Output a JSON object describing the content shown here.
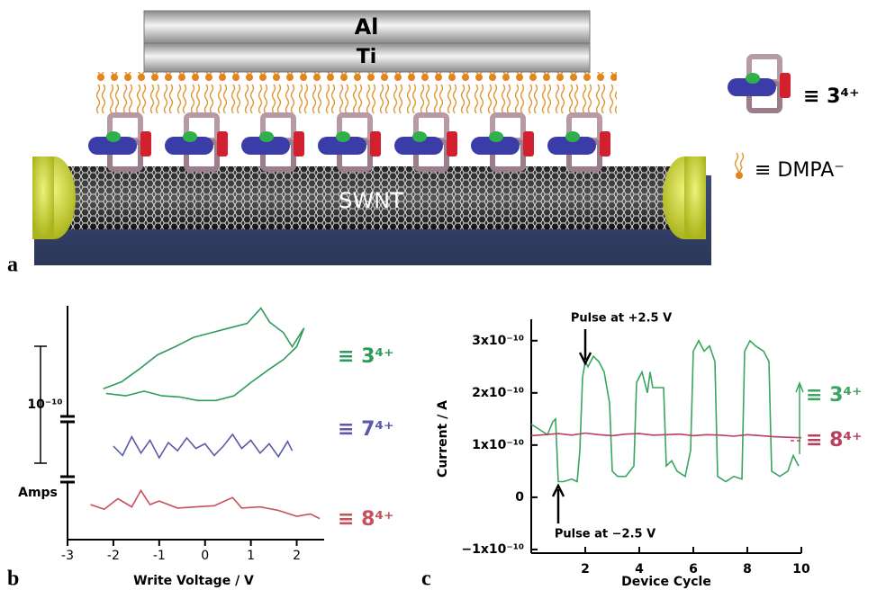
{
  "illustration": {
    "electrode_top": "Al",
    "electrode_bottom": "Ti",
    "nanotube": "SWNT",
    "panel_label": "a",
    "legend": [
      "≡ 3⁴⁺",
      "≡ DMPA⁻"
    ]
  },
  "chart_data": [
    {
      "type": "line",
      "panel_label": "b",
      "xlabel": "Write Voltage / V",
      "ylabel": "Amps",
      "xlim": [
        -3,
        2.5
      ],
      "xticks": [
        -3,
        -2,
        -1,
        0,
        1,
        2
      ],
      "ylim": [
        0,
        2e-10
      ],
      "scale_bar": {
        "value": 1e-10,
        "label": "10⁻¹⁰"
      },
      "series": [
        {
          "name": "≡ 3⁴⁺",
          "color": "#2e9b5c",
          "x": [
            -2.22,
            -1.82,
            -1.43,
            -1.04,
            -0.65,
            -0.25,
            0.14,
            0.53,
            0.92,
            1.22,
            1.41,
            1.71,
            1.9,
            2.16,
            2.0,
            1.71,
            1.41,
            1.02,
            0.63,
            0.24,
            -0.16,
            -0.55,
            -0.94,
            -1.33,
            -1.73,
            -2.16
          ],
          "values": [
            1.29e-10,
            1.35e-10,
            1.46e-10,
            1.58e-10,
            1.65e-10,
            1.73e-10,
            1.77e-10,
            1.81e-10,
            1.85e-10,
            1.98e-10,
            1.86e-10,
            1.77e-10,
            1.65e-10,
            1.81e-10,
            1.65e-10,
            1.54e-10,
            1.46e-10,
            1.35e-10,
            1.23e-10,
            1.19e-10,
            1.19e-10,
            1.22e-10,
            1.23e-10,
            1.27e-10,
            1.23e-10,
            1.25e-10
          ]
        },
        {
          "name": "≡ 7⁴⁺",
          "color": "#5a5aa8",
          "x": [
            -2,
            -1.8,
            -1.6,
            -1.4,
            -1.2,
            -1,
            -0.8,
            -0.6,
            -0.4,
            -0.2,
            0,
            0.2,
            0.4,
            0.6,
            0.8,
            1,
            1.2,
            1.4,
            1.6,
            1.8,
            1.9
          ],
          "values": [
            8e-11,
            7.2e-11,
            8.8e-11,
            7.4e-11,
            8.5e-11,
            7e-11,
            8.3e-11,
            7.6e-11,
            8.7e-11,
            7.8e-11,
            8.2e-11,
            7.2e-11,
            8e-11,
            9e-11,
            7.8e-11,
            8.5e-11,
            7.4e-11,
            8.2e-11,
            7.1e-11,
            8.4e-11,
            7.6e-11
          ]
        },
        {
          "name": "≡ 8⁴⁺",
          "color": "#c8505a",
          "x": [
            -2.5,
            -2.2,
            -1.9,
            -1.6,
            -1.4,
            -1.2,
            -1,
            -0.6,
            -0.2,
            0.2,
            0.6,
            0.8,
            1.2,
            1.6,
            2,
            2.3,
            2.5
          ],
          "values": [
            3e-11,
            2.6e-11,
            3.5e-11,
            2.8e-11,
            4.2e-11,
            3e-11,
            3.3e-11,
            2.7e-11,
            2.8e-11,
            2.9e-11,
            3.6e-11,
            2.7e-11,
            2.8e-11,
            2.5e-11,
            2e-11,
            2.2e-11,
            1.8e-11
          ]
        }
      ]
    },
    {
      "type": "line",
      "panel_label": "c",
      "xlabel": "Device Cycle",
      "ylabel": "Current / A",
      "xlim": [
        0,
        10
      ],
      "xticks": [
        2,
        4,
        6,
        8,
        10
      ],
      "ylim": [
        -1.07e-10,
        3.41e-10
      ],
      "yticks": [
        {
          "value": -1e-10,
          "label": "−1x10⁻¹⁰"
        },
        0,
        {
          "value": 1e-10,
          "label": "1x10⁻¹⁰"
        },
        {
          "value": 2e-10,
          "label": "2x10⁻¹⁰"
        },
        {
          "value": 3e-10,
          "label": "3x10⁻¹⁰"
        }
      ],
      "annotations": [
        "Pulse at +2.5 V",
        "Pulse at −2.5 V"
      ],
      "series": [
        {
          "name": "≡ 3⁴⁺",
          "color": "#3aa561",
          "x": [
            0,
            0.3,
            0.6,
            0.8,
            0.9,
            1.0,
            1.2,
            1.5,
            1.7,
            1.8,
            1.9,
            2.0,
            2.1,
            2.3,
            2.5,
            2.7,
            2.9,
            3.0,
            3.2,
            3.5,
            3.8,
            3.9,
            4.1,
            4.3,
            4.4,
            4.5,
            4.6,
            4.9,
            5.0,
            5.2,
            5.4,
            5.7,
            5.9,
            6.0,
            6.2,
            6.4,
            6.6,
            6.8,
            6.9,
            7.2,
            7.5,
            7.8,
            7.9,
            8.1,
            8.3,
            8.6,
            8.8,
            8.9,
            9.2,
            9.5,
            9.7,
            9.9
          ],
          "values": [
            1.4e-10,
            1.3e-10,
            1.2e-10,
            1.45e-10,
            1.5e-10,
            3e-11,
            3e-11,
            3.5e-11,
            3e-11,
            9e-11,
            2.3e-10,
            2.6e-10,
            2.5e-10,
            2.7e-10,
            2.6e-10,
            2.4e-10,
            1.8e-10,
            5e-11,
            4e-11,
            4e-11,
            6e-11,
            2.2e-10,
            2.4e-10,
            2e-10,
            2.4e-10,
            2.1e-10,
            2.1e-10,
            2.1e-10,
            6e-11,
            7e-11,
            5e-11,
            4e-11,
            9e-11,
            2.8e-10,
            3e-10,
            2.8e-10,
            2.9e-10,
            2.6e-10,
            4e-11,
            3e-11,
            4e-11,
            3.5e-11,
            2.8e-10,
            3e-10,
            2.9e-10,
            2.8e-10,
            2.6e-10,
            5e-11,
            4e-11,
            5e-11,
            8e-11,
            6e-11
          ]
        },
        {
          "name": "≡ 8⁴⁺",
          "color": "#b8405a",
          "x": [
            0,
            0.5,
            1,
            1.5,
            2,
            2.5,
            3,
            3.5,
            4,
            4.5,
            5,
            5.5,
            6,
            6.5,
            7,
            7.5,
            8,
            8.5,
            9,
            9.5,
            10
          ],
          "values": [
            1.18e-10,
            1.2e-10,
            1.22e-10,
            1.19e-10,
            1.23e-10,
            1.2e-10,
            1.18e-10,
            1.21e-10,
            1.22e-10,
            1.19e-10,
            1.2e-10,
            1.21e-10,
            1.18e-10,
            1.2e-10,
            1.19e-10,
            1.17e-10,
            1.2e-10,
            1.18e-10,
            1.16e-10,
            1.15e-10,
            1.14e-10
          ]
        }
      ]
    }
  ]
}
